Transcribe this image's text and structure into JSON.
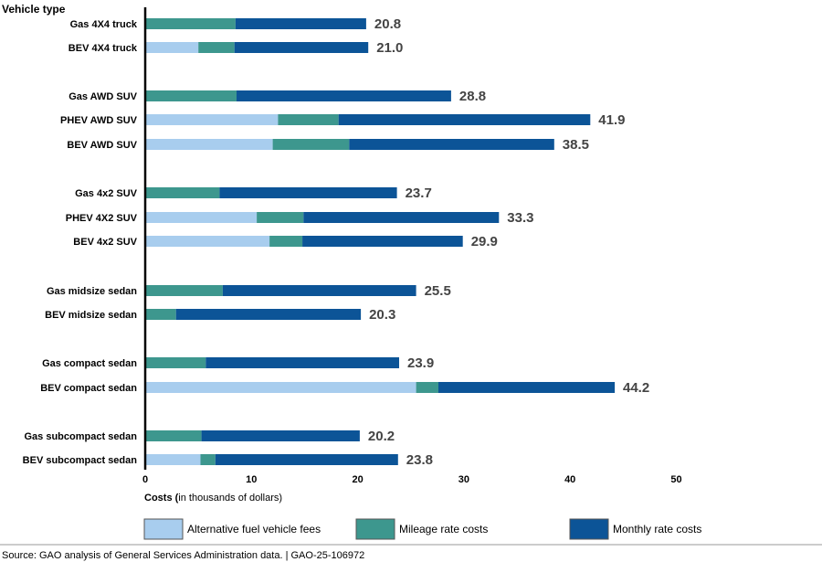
{
  "chart_data": {
    "type": "bar",
    "orientation": "horizontal",
    "stacked": true,
    "ylabel": "Vehicle type",
    "xlabel_bold": "Costs (",
    "xlabel_rest": "in thousands of dollars)",
    "xlim": [
      0,
      50
    ],
    "xticks": [
      "0",
      "10",
      "20",
      "30",
      "40",
      "50"
    ],
    "grid": false,
    "legend_position": "bottom",
    "categories": [
      "Gas 4X4 truck",
      "BEV 4X4 truck",
      "Gas AWD SUV",
      "PHEV AWD SUV",
      "BEV AWD SUV",
      "Gas 4x2 SUV",
      "PHEV 4X2 SUV",
      "BEV 4x2 SUV",
      "Gas midsize sedan",
      "BEV midsize sedan",
      "Gas compact sedan",
      "BEV compact sedan",
      "Gas subcompact sedan",
      "BEV subcompact sedan"
    ],
    "series": [
      {
        "name": "Alternative fuel vehicle fees",
        "color": "#a8cdee",
        "values": [
          0,
          5.0,
          0,
          12.5,
          12.0,
          0,
          10.5,
          11.7,
          0,
          0,
          0,
          25.5,
          0,
          5.2
        ]
      },
      {
        "name": "Mileage rate costs",
        "color": "#3d978e",
        "values": [
          8.5,
          3.4,
          8.6,
          5.7,
          7.2,
          7.0,
          4.4,
          3.1,
          7.3,
          2.9,
          5.7,
          2.1,
          5.3,
          1.4
        ]
      },
      {
        "name": "Monthly rate costs",
        "color": "#0c5497",
        "values": [
          12.3,
          12.6,
          20.2,
          23.7,
          19.3,
          16.7,
          18.4,
          15.1,
          18.2,
          17.4,
          18.2,
          16.6,
          14.9,
          17.2
        ]
      }
    ],
    "totals": [
      "20.8",
      "21.0",
      "28.8",
      "41.9",
      "38.5",
      "23.7",
      "33.3",
      "29.9",
      "25.5",
      "20.3",
      "23.9",
      "44.2",
      "20.2",
      "23.8"
    ],
    "groups": [
      2,
      3,
      3,
      2,
      2,
      2
    ]
  },
  "source": "Source: GAO analysis of General Services Administration data.  |  GAO-25-106972"
}
